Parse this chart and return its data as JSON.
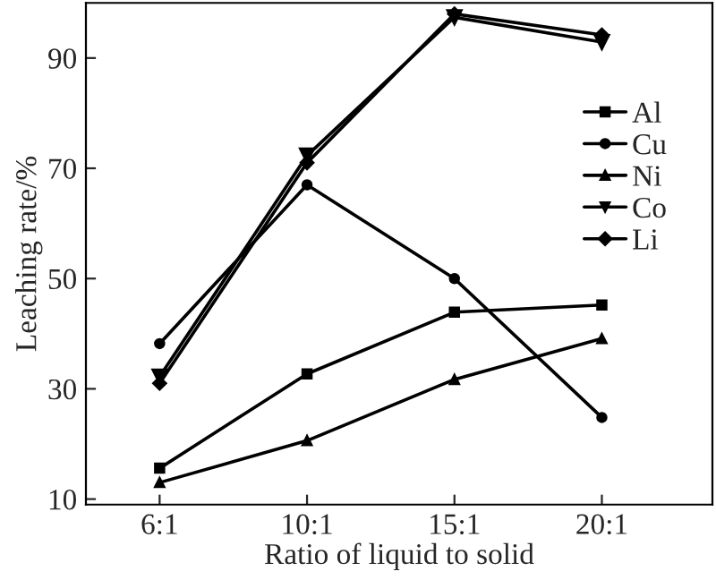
{
  "chart_data": {
    "type": "line",
    "xlabel": "Ratio of liquid to solid",
    "ylabel": "Leaching rate/%",
    "categories": [
      "6:1",
      "10:1",
      "15:1",
      "20:1"
    ],
    "series": [
      {
        "name": "Al",
        "color": "#000000",
        "marker": "square",
        "values": [
          15.6,
          32.7,
          43.9,
          45.2
        ]
      },
      {
        "name": "Cu",
        "color": "#000000",
        "marker": "circle",
        "values": [
          38.2,
          67,
          50,
          24.8
        ]
      },
      {
        "name": "Ni",
        "color": "#000000",
        "marker": "triangle",
        "values": [
          13,
          20.6,
          31.7,
          39.1
        ]
      },
      {
        "name": "Co",
        "color": "#000000",
        "marker": "triangle_down",
        "values": [
          32.2,
          72.3,
          97.4,
          92.9
        ]
      },
      {
        "name": "Li",
        "color": "#000000",
        "marker": "diamond",
        "values": [
          31,
          71,
          98,
          94.2
        ]
      }
    ],
    "ylim": [
      9,
      100
    ],
    "yticks": [
      10,
      30,
      50,
      70,
      90
    ],
    "grid": false,
    "legend": "right",
    "line_style": "solid"
  }
}
